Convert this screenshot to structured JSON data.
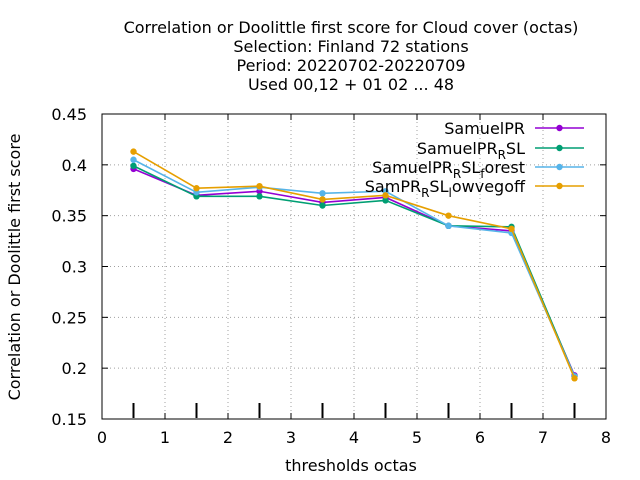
{
  "chart_data": {
    "type": "line",
    "title_lines": [
      "Correlation or Doolittle first score  for Cloud cover (octas)",
      "Selection: Finland     72 stations",
      "Period: 20220702-20220709",
      "Used  00,12  + 01 02 ... 48"
    ],
    "xlabel": "thresholds octas",
    "ylabel": "Correlation or Doolittle first score",
    "xlim": [
      0,
      8
    ],
    "ylim": [
      0.15,
      0.45
    ],
    "x_ticks": [
      "0",
      "1",
      "2",
      "3",
      "4",
      "5",
      "6",
      "7",
      "8"
    ],
    "y_ticks": [
      "0.15",
      "0.2",
      "0.25",
      "0.3",
      "0.35",
      "0.4",
      "0.45"
    ],
    "grid": true,
    "legend_position": "top-right",
    "x": [
      0.5,
      1.5,
      2.5,
      3.5,
      4.5,
      5.5,
      6.5,
      7.5
    ],
    "series": [
      {
        "name": "SamuelPR",
        "legend_base": "SamuelPR",
        "legend_sub": "",
        "legend_rest": "",
        "legend_sub2": "",
        "legend_rest2": "",
        "color": "#9400d3",
        "values": [
          0.396,
          0.37,
          0.374,
          0.363,
          0.368,
          0.34,
          0.335,
          0.193
        ]
      },
      {
        "name": "SamuelPR_RSL",
        "legend_base": "SamuelPR",
        "legend_sub": "R",
        "legend_rest": "SL",
        "legend_sub2": "",
        "legend_rest2": "",
        "color": "#009e73",
        "values": [
          0.399,
          0.369,
          0.369,
          0.36,
          0.365,
          0.34,
          0.339,
          0.192
        ]
      },
      {
        "name": "SamuelPR_RSL_forest",
        "legend_base": "SamuelPR",
        "legend_sub": "R",
        "legend_rest": "SL",
        "legend_sub2": "f",
        "legend_rest2": "orest",
        "color": "#56b4e9",
        "values": [
          0.405,
          0.373,
          0.378,
          0.372,
          0.374,
          0.34,
          0.333,
          0.192
        ]
      },
      {
        "name": "SamPR_RSL_lowvegoff",
        "legend_base": "SamPR",
        "legend_sub": "R",
        "legend_rest": "SL",
        "legend_sub2": "l",
        "legend_rest2": "owvegoff",
        "color": "#e69f00",
        "values": [
          0.413,
          0.377,
          0.379,
          0.366,
          0.37,
          0.35,
          0.337,
          0.19
        ]
      }
    ],
    "observation_ticks_x": [
      0.5,
      1.5,
      2.5,
      3.5,
      4.5,
      5.5,
      6.5,
      7.5
    ]
  }
}
